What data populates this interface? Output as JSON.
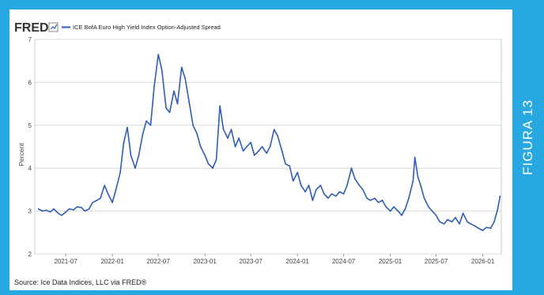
{
  "side_label": "FIGURA 13",
  "fred": {
    "logo": "FRED",
    "legend_icon": "line-chart-icon",
    "source": "Source: Ice Data Indices, LLC via FRED®"
  },
  "colors": {
    "frame": "#27a8e0",
    "line": "#2f5cb7",
    "grid": "#d9d9d9"
  },
  "chart_data": {
    "type": "line",
    "series": [
      {
        "name": "ICE BofA Euro High Yield Index Option-Adjusted Spread",
        "values": [
          [
            "2021-03-15",
            3.05
          ],
          [
            "2021-04-01",
            3.0
          ],
          [
            "2021-04-15",
            3.02
          ],
          [
            "2021-05-01",
            2.98
          ],
          [
            "2021-05-15",
            3.05
          ],
          [
            "2021-06-01",
            2.95
          ],
          [
            "2021-06-15",
            2.9
          ],
          [
            "2021-07-01",
            2.98
          ],
          [
            "2021-07-15",
            3.05
          ],
          [
            "2021-08-01",
            3.03
          ],
          [
            "2021-08-15",
            3.1
          ],
          [
            "2021-09-01",
            3.08
          ],
          [
            "2021-09-15",
            3.0
          ],
          [
            "2021-10-01",
            3.05
          ],
          [
            "2021-10-15",
            3.2
          ],
          [
            "2021-11-01",
            3.25
          ],
          [
            "2021-11-15",
            3.3
          ],
          [
            "2021-12-01",
            3.6
          ],
          [
            "2021-12-15",
            3.4
          ],
          [
            "2022-01-01",
            3.2
          ],
          [
            "2022-01-15",
            3.5
          ],
          [
            "2022-02-01",
            3.9
          ],
          [
            "2022-02-15",
            4.6
          ],
          [
            "2022-03-01",
            4.95
          ],
          [
            "2022-03-15",
            4.3
          ],
          [
            "2022-04-01",
            4.0
          ],
          [
            "2022-04-15",
            4.3
          ],
          [
            "2022-05-01",
            4.8
          ],
          [
            "2022-05-15",
            5.1
          ],
          [
            "2022-06-01",
            5.0
          ],
          [
            "2022-06-15",
            5.9
          ],
          [
            "2022-07-01",
            6.65
          ],
          [
            "2022-07-15",
            6.3
          ],
          [
            "2022-08-01",
            5.4
          ],
          [
            "2022-08-15",
            5.3
          ],
          [
            "2022-09-01",
            5.8
          ],
          [
            "2022-09-15",
            5.5
          ],
          [
            "2022-10-01",
            6.35
          ],
          [
            "2022-10-15",
            6.1
          ],
          [
            "2022-11-01",
            5.5
          ],
          [
            "2022-11-15",
            5.0
          ],
          [
            "2022-12-01",
            4.8
          ],
          [
            "2022-12-15",
            4.5
          ],
          [
            "2023-01-01",
            4.3
          ],
          [
            "2023-01-15",
            4.1
          ],
          [
            "2023-02-01",
            4.0
          ],
          [
            "2023-02-15",
            4.2
          ],
          [
            "2023-03-01",
            5.45
          ],
          [
            "2023-03-15",
            4.9
          ],
          [
            "2023-04-01",
            4.7
          ],
          [
            "2023-04-15",
            4.9
          ],
          [
            "2023-05-01",
            4.5
          ],
          [
            "2023-05-15",
            4.7
          ],
          [
            "2023-06-01",
            4.4
          ],
          [
            "2023-06-15",
            4.5
          ],
          [
            "2023-07-01",
            4.6
          ],
          [
            "2023-07-15",
            4.3
          ],
          [
            "2023-08-01",
            4.4
          ],
          [
            "2023-08-15",
            4.5
          ],
          [
            "2023-09-01",
            4.35
          ],
          [
            "2023-09-15",
            4.5
          ],
          [
            "2023-10-01",
            4.9
          ],
          [
            "2023-10-15",
            4.75
          ],
          [
            "2023-11-01",
            4.4
          ],
          [
            "2023-11-15",
            4.1
          ],
          [
            "2023-12-01",
            4.05
          ],
          [
            "2023-12-15",
            3.7
          ],
          [
            "2024-01-01",
            3.9
          ],
          [
            "2024-01-15",
            3.6
          ],
          [
            "2024-02-01",
            3.45
          ],
          [
            "2024-02-15",
            3.6
          ],
          [
            "2024-03-01",
            3.25
          ],
          [
            "2024-03-15",
            3.5
          ],
          [
            "2024-04-01",
            3.6
          ],
          [
            "2024-04-15",
            3.4
          ],
          [
            "2024-05-01",
            3.3
          ],
          [
            "2024-05-15",
            3.4
          ],
          [
            "2024-06-01",
            3.35
          ],
          [
            "2024-06-15",
            3.45
          ],
          [
            "2024-07-01",
            3.4
          ],
          [
            "2024-07-15",
            3.6
          ],
          [
            "2024-08-01",
            4.0
          ],
          [
            "2024-08-15",
            3.75
          ],
          [
            "2024-09-01",
            3.6
          ],
          [
            "2024-09-15",
            3.5
          ],
          [
            "2024-10-01",
            3.3
          ],
          [
            "2024-10-15",
            3.25
          ],
          [
            "2024-11-01",
            3.3
          ],
          [
            "2024-11-15",
            3.2
          ],
          [
            "2024-12-01",
            3.25
          ],
          [
            "2024-12-15",
            3.1
          ],
          [
            "2025-01-01",
            3.0
          ],
          [
            "2025-01-15",
            3.1
          ],
          [
            "2025-02-01",
            3.0
          ],
          [
            "2025-02-15",
            2.9
          ],
          [
            "2025-03-01",
            3.05
          ],
          [
            "2025-03-15",
            3.3
          ],
          [
            "2025-04-01",
            3.7
          ],
          [
            "2025-04-08",
            4.25
          ],
          [
            "2025-04-20",
            3.8
          ],
          [
            "2025-05-01",
            3.6
          ],
          [
            "2025-05-15",
            3.3
          ],
          [
            "2025-06-01",
            3.1
          ],
          [
            "2025-06-15",
            3.0
          ],
          [
            "2025-07-01",
            2.9
          ],
          [
            "2025-07-15",
            2.75
          ],
          [
            "2025-08-01",
            2.7
          ],
          [
            "2025-08-15",
            2.8
          ],
          [
            "2025-09-01",
            2.75
          ],
          [
            "2025-09-15",
            2.85
          ],
          [
            "2025-10-01",
            2.7
          ],
          [
            "2025-10-15",
            2.95
          ],
          [
            "2025-11-01",
            2.75
          ],
          [
            "2025-11-15",
            2.7
          ],
          [
            "2025-12-01",
            2.65
          ],
          [
            "2025-12-15",
            2.6
          ],
          [
            "2026-01-01",
            2.55
          ],
          [
            "2026-01-15",
            2.62
          ],
          [
            "2026-02-01",
            2.6
          ],
          [
            "2026-02-15",
            2.75
          ],
          [
            "2026-03-01",
            3.05
          ],
          [
            "2026-03-10",
            3.35
          ]
        ]
      }
    ],
    "xlabel": "",
    "ylabel": "Percent",
    "ylim": [
      2,
      7
    ],
    "yticks": [
      2,
      3,
      4,
      5,
      6,
      7
    ],
    "xlim": [
      "2021-03-01",
      "2026-03-15"
    ],
    "xticks": [
      "2021-07",
      "2022-01",
      "2022-07",
      "2023-01",
      "2023-07",
      "2024-01",
      "2024-07",
      "2025-01",
      "2025-07",
      "2026-01"
    ],
    "grid": true,
    "legend": "top-left"
  }
}
